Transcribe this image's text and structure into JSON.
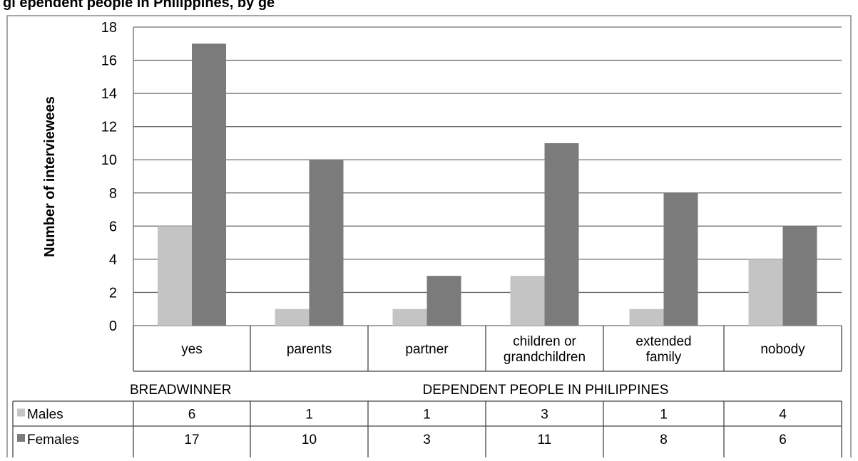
{
  "chart_data": {
    "type": "bar",
    "title": "gi                                                    ependent people in Philippines, by ge",
    "ylabel": "Number of interviewees",
    "ylim": [
      0,
      18
    ],
    "yticks": [
      0,
      2,
      4,
      6,
      8,
      10,
      12,
      14,
      16,
      18
    ],
    "grid": true,
    "categories": [
      "yes",
      "parents",
      "partner",
      "children or grandchildren",
      "extended family",
      "nobody"
    ],
    "category_lines": [
      [
        "yes"
      ],
      [
        "parents"
      ],
      [
        "partner"
      ],
      [
        "children or",
        "grandchildren"
      ],
      [
        "extended",
        "family"
      ],
      [
        "nobody"
      ]
    ],
    "groups": [
      {
        "label": "BREADWINNER",
        "categories": [
          "yes"
        ]
      },
      {
        "label": "DEPENDENT PEOPLE IN PHILIPPINES",
        "categories": [
          "parents",
          "partner",
          "children or grandchildren",
          "extended family",
          "nobody"
        ]
      }
    ],
    "series": [
      {
        "name": "Males",
        "color": "#c4c4c4",
        "values": [
          6,
          1,
          1,
          3,
          1,
          4
        ]
      },
      {
        "name": "Females",
        "color": "#7b7b7b",
        "values": [
          17,
          10,
          3,
          11,
          8,
          6
        ]
      }
    ],
    "legend": "data-table-left"
  }
}
